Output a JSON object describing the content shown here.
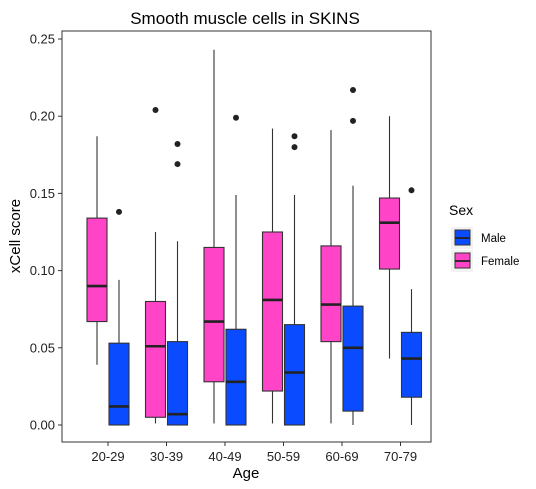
{
  "chart_data": {
    "type": "boxplot",
    "title": "Smooth muscle cells in SKINS",
    "xlabel": "Age",
    "ylabel": "xCell score",
    "ylim": [
      -0.01,
      0.255
    ],
    "yticks": [
      0.0,
      0.05,
      0.1,
      0.15,
      0.2,
      0.25
    ],
    "ytick_labels": [
      "0.00",
      "0.05",
      "0.10",
      "0.15",
      "0.20",
      "0.25"
    ],
    "categories": [
      "20-29",
      "30-39",
      "40-49",
      "50-59",
      "60-69",
      "70-79"
    ],
    "grid": false,
    "legend": {
      "title": "Sex",
      "position": "right"
    },
    "series": [
      {
        "name": "Female",
        "color": "#FF44C8",
        "boxes": [
          {
            "whisker_low": 0.039,
            "q1": 0.067,
            "median": 0.09,
            "q3": 0.134,
            "whisker_high": 0.187,
            "outliers": []
          },
          {
            "whisker_low": 0.001,
            "q1": 0.005,
            "median": 0.051,
            "q3": 0.08,
            "whisker_high": 0.125,
            "outliers": [
              0.204
            ]
          },
          {
            "whisker_low": 0.001,
            "q1": 0.028,
            "median": 0.067,
            "q3": 0.115,
            "whisker_high": 0.243,
            "outliers": []
          },
          {
            "whisker_low": 0.001,
            "q1": 0.022,
            "median": 0.081,
            "q3": 0.125,
            "whisker_high": 0.192,
            "outliers": []
          },
          {
            "whisker_low": 0.001,
            "q1": 0.054,
            "median": 0.078,
            "q3": 0.116,
            "whisker_high": 0.191,
            "outliers": []
          },
          {
            "whisker_low": 0.043,
            "q1": 0.101,
            "median": 0.131,
            "q3": 0.147,
            "whisker_high": 0.2,
            "outliers": []
          }
        ]
      },
      {
        "name": "Male",
        "color": "#0A4BFF",
        "boxes": [
          {
            "whisker_low": 0.0,
            "q1": 0.0,
            "median": 0.012,
            "q3": 0.053,
            "whisker_high": 0.094,
            "outliers": [
              0.138
            ]
          },
          {
            "whisker_low": 0.0,
            "q1": 0.0,
            "median": 0.007,
            "q3": 0.054,
            "whisker_high": 0.119,
            "outliers": [
              0.182,
              0.169
            ]
          },
          {
            "whisker_low": 0.0,
            "q1": 0.0,
            "median": 0.028,
            "q3": 0.062,
            "whisker_high": 0.149,
            "outliers": [
              0.199
            ]
          },
          {
            "whisker_low": 0.0,
            "q1": 0.0,
            "median": 0.034,
            "q3": 0.065,
            "whisker_high": 0.149,
            "outliers": [
              0.187,
              0.18
            ]
          },
          {
            "whisker_low": 0.0,
            "q1": 0.009,
            "median": 0.05,
            "q3": 0.077,
            "whisker_high": 0.155,
            "outliers": [
              0.217,
              0.197
            ]
          },
          {
            "whisker_low": 0.0,
            "q1": 0.018,
            "median": 0.043,
            "q3": 0.06,
            "whisker_high": 0.088,
            "outliers": [
              0.152
            ]
          }
        ]
      }
    ],
    "legend_order": [
      "Male",
      "Female"
    ]
  }
}
